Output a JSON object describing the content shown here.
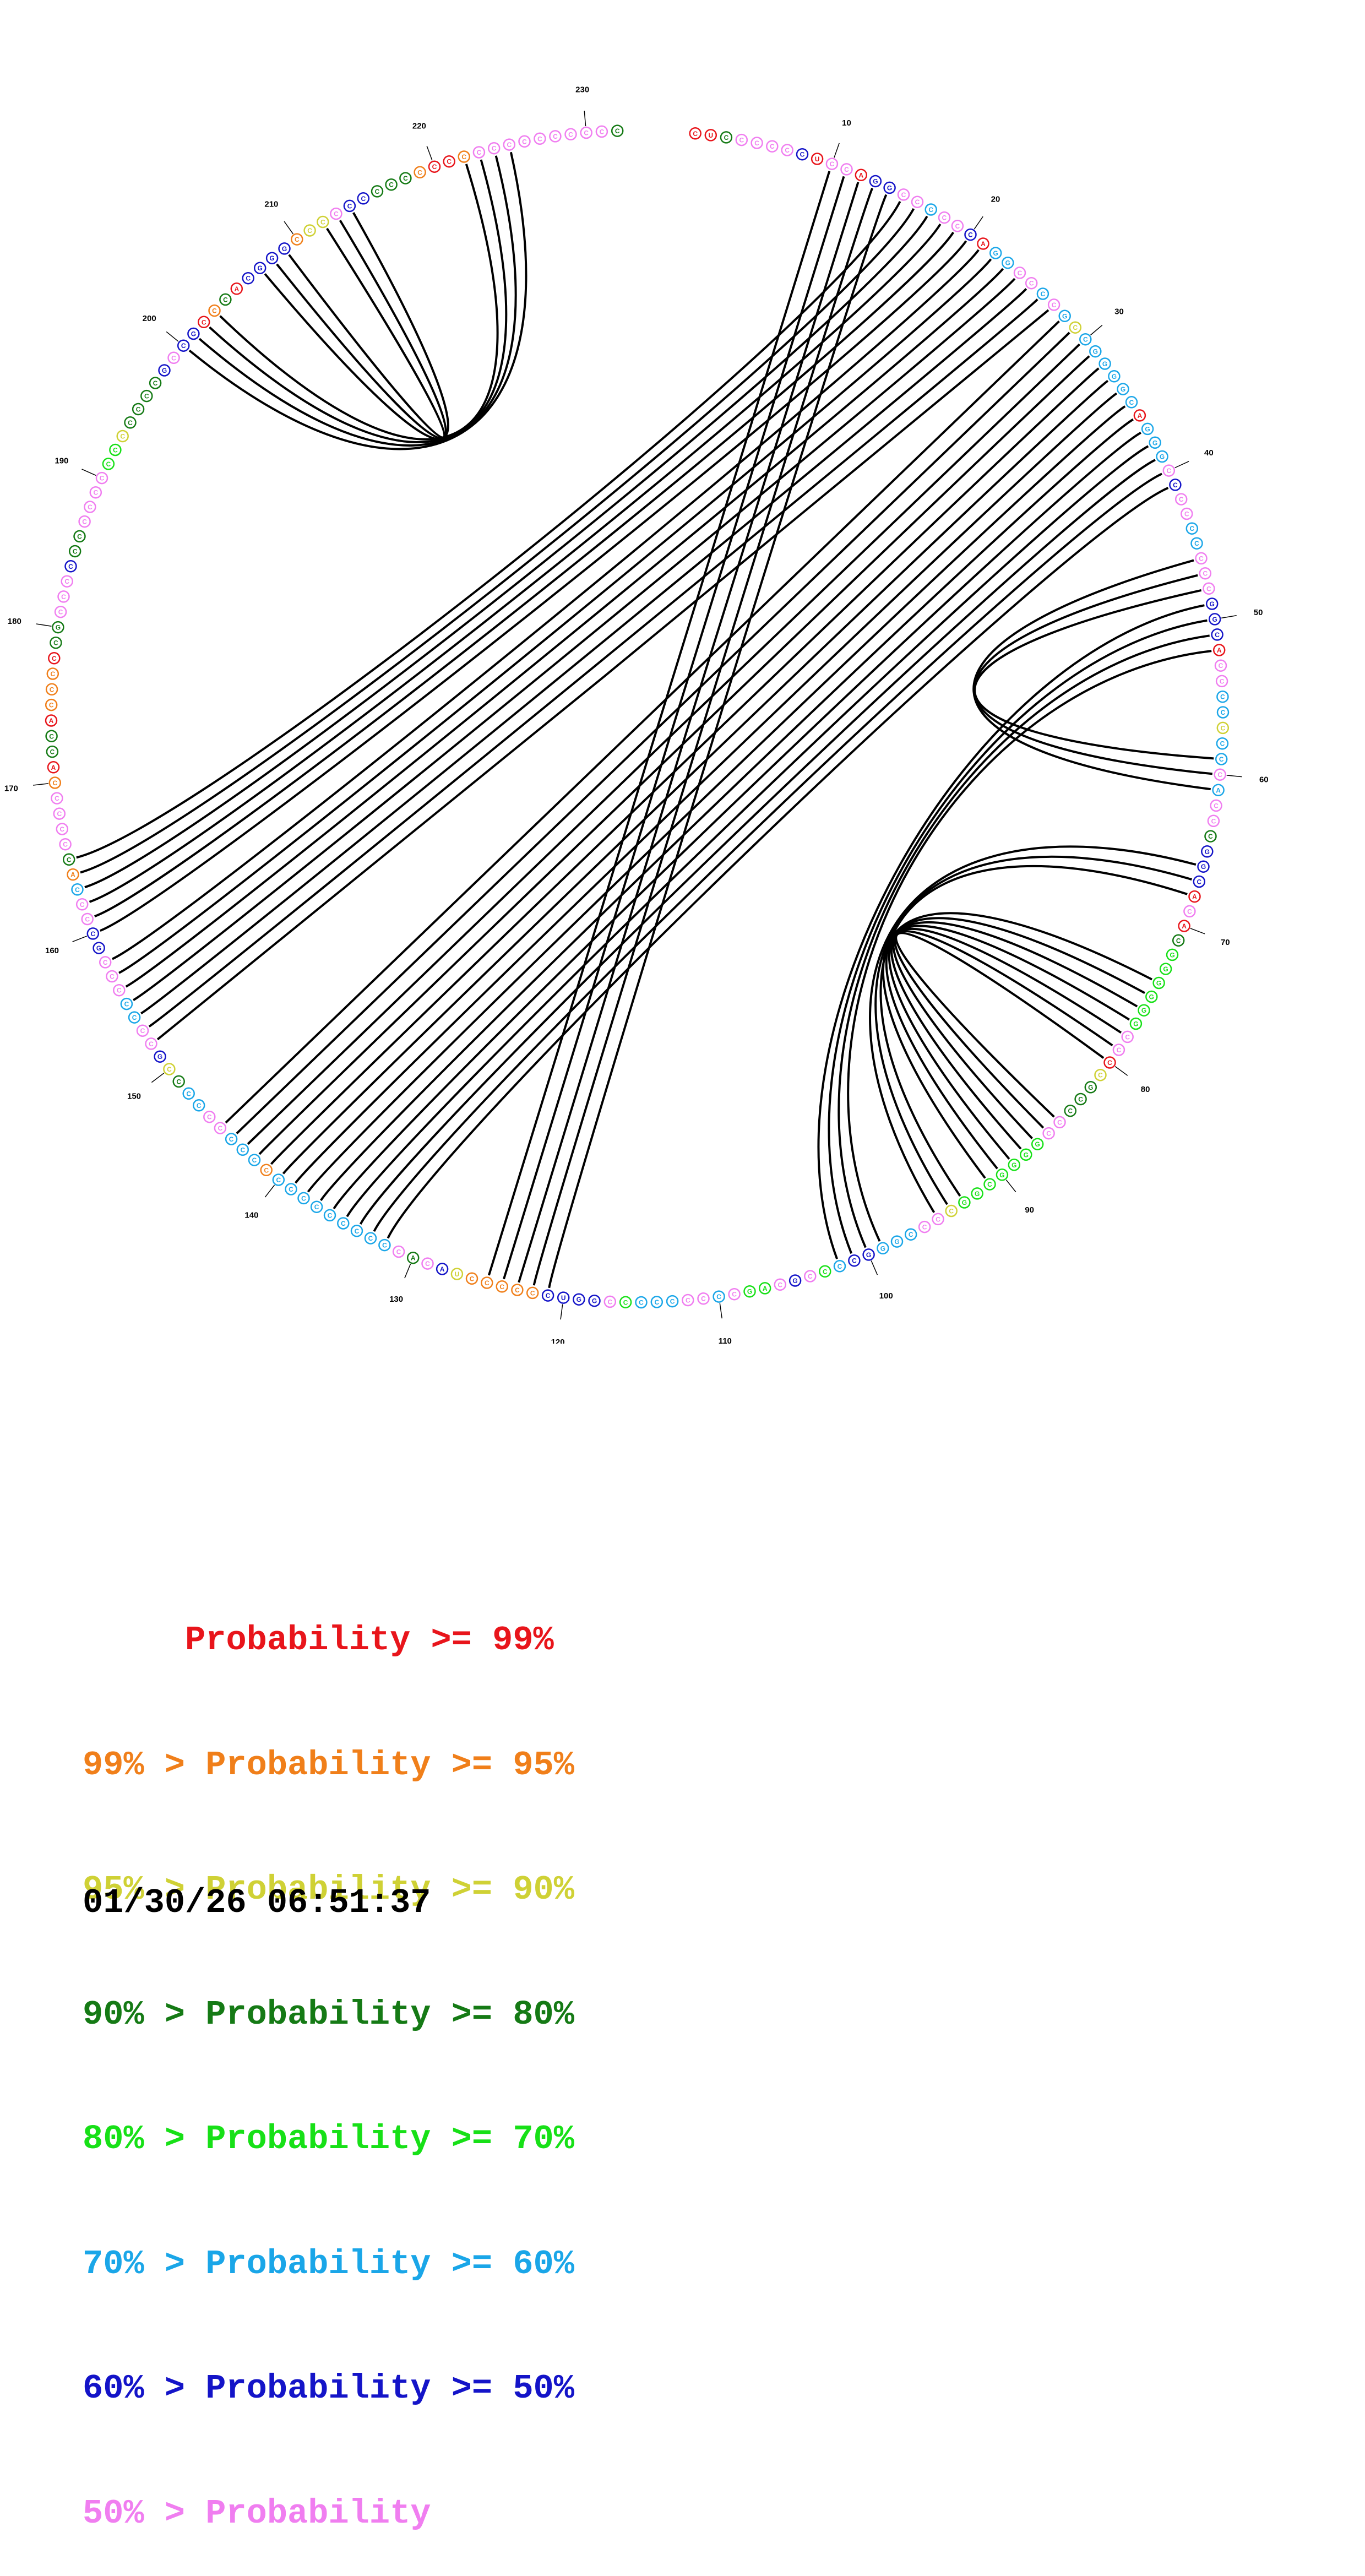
{
  "diagram": {
    "sequence_length": 232,
    "backbone_order": "clockwise",
    "tick_labels": [
      "10",
      "20",
      "30",
      "40",
      "50",
      "60",
      "70",
      "80",
      "90",
      "100",
      "110",
      "120",
      "130",
      "140",
      "150",
      "160",
      "170",
      "180",
      "190",
      "200",
      "210",
      "220",
      "230"
    ],
    "probability_colors": {
      "p99": "#e8151b",
      "p95": "#f07f1a",
      "p90": "#cfd135",
      "p80": "#157a15",
      "p70": "#17e017",
      "p60": "#1aa6e8",
      "p50": "#1414c8",
      "plt50": "#f07ef0"
    },
    "nucleotides": [
      {
        "base": "C",
        "color": "p99"
      },
      {
        "base": "U",
        "color": "p99"
      },
      {
        "base": "C",
        "color": "p80"
      },
      {
        "base": "C",
        "color": "plt50"
      },
      {
        "base": "C",
        "color": "plt50"
      },
      {
        "base": "C",
        "color": "plt50"
      },
      {
        "base": "C",
        "color": "plt50"
      },
      {
        "base": "C",
        "color": "p50"
      },
      {
        "base": "U",
        "color": "p99"
      },
      {
        "base": "C",
        "color": "plt50"
      },
      {
        "base": "C",
        "color": "plt50"
      },
      {
        "base": "A",
        "color": "p99"
      },
      {
        "base": "G",
        "color": "p50"
      },
      {
        "base": "G",
        "color": "p50"
      },
      {
        "base": "C",
        "color": "plt50"
      },
      {
        "base": "C",
        "color": "plt50"
      },
      {
        "base": "C",
        "color": "p60"
      },
      {
        "base": "C",
        "color": "plt50"
      },
      {
        "base": "C",
        "color": "plt50"
      },
      {
        "base": "C",
        "color": "p50"
      },
      {
        "base": "A",
        "color": "p99"
      },
      {
        "base": "G",
        "color": "p60"
      },
      {
        "base": "G",
        "color": "p60"
      },
      {
        "base": "C",
        "color": "plt50"
      },
      {
        "base": "C",
        "color": "plt50"
      },
      {
        "base": "C",
        "color": "p60"
      },
      {
        "base": "C",
        "color": "plt50"
      },
      {
        "base": "G",
        "color": "p60"
      },
      {
        "base": "C",
        "color": "p90"
      },
      {
        "base": "C",
        "color": "p60"
      },
      {
        "base": "G",
        "color": "p60"
      },
      {
        "base": "G",
        "color": "p60"
      },
      {
        "base": "G",
        "color": "p60"
      },
      {
        "base": "G",
        "color": "p60"
      },
      {
        "base": "C",
        "color": "p60"
      },
      {
        "base": "A",
        "color": "p99"
      },
      {
        "base": "G",
        "color": "p60"
      },
      {
        "base": "G",
        "color": "p60"
      },
      {
        "base": "G",
        "color": "p60"
      },
      {
        "base": "C",
        "color": "plt50"
      },
      {
        "base": "C",
        "color": "p50"
      },
      {
        "base": "C",
        "color": "plt50"
      },
      {
        "base": "C",
        "color": "plt50"
      },
      {
        "base": "C",
        "color": "p60"
      },
      {
        "base": "C",
        "color": "p60"
      },
      {
        "base": "C",
        "color": "plt50"
      },
      {
        "base": "C",
        "color": "plt50"
      },
      {
        "base": "C",
        "color": "plt50"
      },
      {
        "base": "G",
        "color": "p50"
      },
      {
        "base": "G",
        "color": "p50"
      },
      {
        "base": "C",
        "color": "p50"
      },
      {
        "base": "A",
        "color": "p99"
      },
      {
        "base": "C",
        "color": "plt50"
      },
      {
        "base": "C",
        "color": "plt50"
      },
      {
        "base": "C",
        "color": "p60"
      },
      {
        "base": "C",
        "color": "p60"
      },
      {
        "base": "C",
        "color": "p90"
      },
      {
        "base": "C",
        "color": "p60"
      },
      {
        "base": "C",
        "color": "p60"
      },
      {
        "base": "C",
        "color": "plt50"
      },
      {
        "base": "A",
        "color": "p60"
      },
      {
        "base": "C",
        "color": "plt50"
      },
      {
        "base": "C",
        "color": "plt50"
      },
      {
        "base": "C",
        "color": "p80"
      },
      {
        "base": "G",
        "color": "p50"
      },
      {
        "base": "G",
        "color": "p50"
      },
      {
        "base": "C",
        "color": "p50"
      },
      {
        "base": "A",
        "color": "p99"
      },
      {
        "base": "C",
        "color": "plt50"
      },
      {
        "base": "A",
        "color": "p99"
      },
      {
        "base": "C",
        "color": "p80"
      },
      {
        "base": "G",
        "color": "p70"
      },
      {
        "base": "G",
        "color": "p70"
      },
      {
        "base": "G",
        "color": "p70"
      },
      {
        "base": "G",
        "color": "p70"
      },
      {
        "base": "G",
        "color": "p70"
      },
      {
        "base": "G",
        "color": "p70"
      },
      {
        "base": "C",
        "color": "plt50"
      },
      {
        "base": "C",
        "color": "plt50"
      },
      {
        "base": "C",
        "color": "p99"
      },
      {
        "base": "C",
        "color": "p90"
      },
      {
        "base": "G",
        "color": "p80"
      },
      {
        "base": "C",
        "color": "p80"
      },
      {
        "base": "C",
        "color": "p80"
      },
      {
        "base": "C",
        "color": "plt50"
      },
      {
        "base": "C",
        "color": "plt50"
      },
      {
        "base": "G",
        "color": "p70"
      },
      {
        "base": "G",
        "color": "p70"
      },
      {
        "base": "G",
        "color": "p70"
      },
      {
        "base": "G",
        "color": "p70"
      },
      {
        "base": "C",
        "color": "p70"
      },
      {
        "base": "G",
        "color": "p70"
      },
      {
        "base": "G",
        "color": "p70"
      },
      {
        "base": "C",
        "color": "p90"
      },
      {
        "base": "C",
        "color": "plt50"
      },
      {
        "base": "C",
        "color": "plt50"
      },
      {
        "base": "C",
        "color": "p60"
      },
      {
        "base": "G",
        "color": "p60"
      },
      {
        "base": "G",
        "color": "p60"
      },
      {
        "base": "G",
        "color": "p50"
      },
      {
        "base": "C",
        "color": "p50"
      },
      {
        "base": "C",
        "color": "p60"
      },
      {
        "base": "C",
        "color": "p70"
      },
      {
        "base": "C",
        "color": "plt50"
      },
      {
        "base": "G",
        "color": "p50"
      },
      {
        "base": "C",
        "color": "plt50"
      },
      {
        "base": "A",
        "color": "p70"
      },
      {
        "base": "G",
        "color": "p70"
      },
      {
        "base": "C",
        "color": "plt50"
      },
      {
        "base": "C",
        "color": "p60"
      },
      {
        "base": "C",
        "color": "plt50"
      },
      {
        "base": "C",
        "color": "plt50"
      },
      {
        "base": "C",
        "color": "p60"
      },
      {
        "base": "C",
        "color": "p60"
      },
      {
        "base": "C",
        "color": "p60"
      },
      {
        "base": "C",
        "color": "p70"
      },
      {
        "base": "C",
        "color": "plt50"
      },
      {
        "base": "G",
        "color": "p50"
      },
      {
        "base": "G",
        "color": "p50"
      },
      {
        "base": "U",
        "color": "p50"
      },
      {
        "base": "C",
        "color": "p50"
      },
      {
        "base": "C",
        "color": "p95"
      },
      {
        "base": "C",
        "color": "p95"
      },
      {
        "base": "C",
        "color": "p95"
      },
      {
        "base": "C",
        "color": "p95"
      },
      {
        "base": "C",
        "color": "p95"
      },
      {
        "base": "U",
        "color": "p90"
      },
      {
        "base": "A",
        "color": "p50"
      },
      {
        "base": "C",
        "color": "plt50"
      },
      {
        "base": "A",
        "color": "p80"
      },
      {
        "base": "C",
        "color": "plt50"
      },
      {
        "base": "C",
        "color": "p60"
      },
      {
        "base": "C",
        "color": "p60"
      },
      {
        "base": "C",
        "color": "p60"
      },
      {
        "base": "C",
        "color": "p60"
      },
      {
        "base": "C",
        "color": "p60"
      },
      {
        "base": "C",
        "color": "p60"
      },
      {
        "base": "C",
        "color": "p60"
      },
      {
        "base": "C",
        "color": "p60"
      },
      {
        "base": "C",
        "color": "p60"
      },
      {
        "base": "C",
        "color": "p95"
      },
      {
        "base": "C",
        "color": "p60"
      },
      {
        "base": "C",
        "color": "p60"
      },
      {
        "base": "C",
        "color": "p60"
      },
      {
        "base": "C",
        "color": "plt50"
      },
      {
        "base": "C",
        "color": "plt50"
      },
      {
        "base": "C",
        "color": "p60"
      },
      {
        "base": "C",
        "color": "p60"
      },
      {
        "base": "C",
        "color": "p80"
      },
      {
        "base": "C",
        "color": "p90"
      },
      {
        "base": "G",
        "color": "p50"
      },
      {
        "base": "C",
        "color": "plt50"
      },
      {
        "base": "C",
        "color": "plt50"
      },
      {
        "base": "C",
        "color": "p60"
      },
      {
        "base": "C",
        "color": "p60"
      },
      {
        "base": "C",
        "color": "plt50"
      },
      {
        "base": "C",
        "color": "plt50"
      },
      {
        "base": "C",
        "color": "plt50"
      },
      {
        "base": "G",
        "color": "p50"
      },
      {
        "base": "C",
        "color": "p50"
      },
      {
        "base": "C",
        "color": "plt50"
      },
      {
        "base": "C",
        "color": "plt50"
      },
      {
        "base": "C",
        "color": "p60"
      },
      {
        "base": "A",
        "color": "p95"
      },
      {
        "base": "C",
        "color": "p80"
      },
      {
        "base": "C",
        "color": "plt50"
      },
      {
        "base": "C",
        "color": "plt50"
      },
      {
        "base": "C",
        "color": "plt50"
      },
      {
        "base": "C",
        "color": "plt50"
      },
      {
        "base": "C",
        "color": "p95"
      },
      {
        "base": "A",
        "color": "p99"
      },
      {
        "base": "C",
        "color": "p80"
      },
      {
        "base": "C",
        "color": "p80"
      },
      {
        "base": "A",
        "color": "p99"
      },
      {
        "base": "C",
        "color": "p95"
      },
      {
        "base": "C",
        "color": "p95"
      },
      {
        "base": "C",
        "color": "p95"
      },
      {
        "base": "C",
        "color": "p99"
      },
      {
        "base": "C",
        "color": "p80"
      },
      {
        "base": "G",
        "color": "p80"
      },
      {
        "base": "C",
        "color": "plt50"
      },
      {
        "base": "C",
        "color": "plt50"
      },
      {
        "base": "C",
        "color": "plt50"
      },
      {
        "base": "C",
        "color": "p50"
      },
      {
        "base": "C",
        "color": "p80"
      },
      {
        "base": "C",
        "color": "p80"
      },
      {
        "base": "C",
        "color": "plt50"
      },
      {
        "base": "C",
        "color": "plt50"
      },
      {
        "base": "C",
        "color": "plt50"
      },
      {
        "base": "C",
        "color": "plt50"
      },
      {
        "base": "C",
        "color": "p70"
      },
      {
        "base": "C",
        "color": "p70"
      },
      {
        "base": "C",
        "color": "p90"
      },
      {
        "base": "C",
        "color": "p80"
      },
      {
        "base": "C",
        "color": "p80"
      },
      {
        "base": "C",
        "color": "p80"
      },
      {
        "base": "C",
        "color": "p80"
      },
      {
        "base": "G",
        "color": "p50"
      },
      {
        "base": "C",
        "color": "plt50"
      },
      {
        "base": "C",
        "color": "p50"
      },
      {
        "base": "G",
        "color": "p50"
      },
      {
        "base": "C",
        "color": "p99"
      },
      {
        "base": "C",
        "color": "p95"
      },
      {
        "base": "C",
        "color": "p80"
      },
      {
        "base": "A",
        "color": "p99"
      },
      {
        "base": "C",
        "color": "p50"
      },
      {
        "base": "G",
        "color": "p50"
      },
      {
        "base": "G",
        "color": "p50"
      },
      {
        "base": "G",
        "color": "p50"
      },
      {
        "base": "C",
        "color": "p95"
      },
      {
        "base": "C",
        "color": "p90"
      },
      {
        "base": "C",
        "color": "p90"
      },
      {
        "base": "C",
        "color": "plt50"
      },
      {
        "base": "C",
        "color": "p50"
      },
      {
        "base": "C",
        "color": "p50"
      },
      {
        "base": "C",
        "color": "p80"
      },
      {
        "base": "C",
        "color": "p80"
      },
      {
        "base": "C",
        "color": "p80"
      },
      {
        "base": "C",
        "color": "p95"
      },
      {
        "base": "C",
        "color": "p99"
      },
      {
        "base": "C",
        "color": "p99"
      },
      {
        "base": "C",
        "color": "p95"
      },
      {
        "base": "C",
        "color": "plt50"
      },
      {
        "base": "C",
        "color": "plt50"
      },
      {
        "base": "C",
        "color": "plt50"
      },
      {
        "base": "C",
        "color": "plt50"
      },
      {
        "base": "C",
        "color": "plt50"
      },
      {
        "base": "C",
        "color": "plt50"
      },
      {
        "base": "C",
        "color": "plt50"
      },
      {
        "base": "C",
        "color": "plt50"
      },
      {
        "base": "C",
        "color": "plt50"
      },
      {
        "base": "C",
        "color": "p80"
      }
    ],
    "pairs": [
      [
        10,
        125
      ],
      [
        11,
        124
      ],
      [
        12,
        123
      ],
      [
        13,
        122
      ],
      [
        14,
        121
      ],
      [
        15,
        165
      ],
      [
        16,
        164
      ],
      [
        17,
        163
      ],
      [
        18,
        162
      ],
      [
        19,
        161
      ],
      [
        20,
        160
      ],
      [
        21,
        158
      ],
      [
        22,
        157
      ],
      [
        23,
        156
      ],
      [
        24,
        155
      ],
      [
        25,
        154
      ],
      [
        26,
        153
      ],
      [
        27,
        152
      ],
      [
        28,
        145
      ],
      [
        29,
        144
      ],
      [
        30,
        143
      ],
      [
        31,
        142
      ],
      [
        32,
        141
      ],
      [
        33,
        140
      ],
      [
        34,
        139
      ],
      [
        35,
        138
      ],
      [
        36,
        137
      ],
      [
        37,
        136
      ],
      [
        38,
        135
      ],
      [
        39,
        134
      ],
      [
        40,
        133
      ],
      [
        41,
        132
      ],
      [
        46,
        61
      ],
      [
        47,
        60
      ],
      [
        48,
        59
      ],
      [
        49,
        102
      ],
      [
        50,
        101
      ],
      [
        51,
        100
      ],
      [
        52,
        99
      ],
      [
        66,
        95
      ],
      [
        67,
        94
      ],
      [
        68,
        93
      ],
      [
        74,
        91
      ],
      [
        75,
        90
      ],
      [
        76,
        89
      ],
      [
        77,
        88
      ],
      [
        78,
        87
      ],
      [
        79,
        86
      ],
      [
        80,
        85
      ],
      [
        200,
        225
      ],
      [
        201,
        224
      ],
      [
        202,
        223
      ],
      [
        203,
        222
      ],
      [
        207,
        214
      ],
      [
        208,
        213
      ],
      [
        209,
        212
      ]
    ]
  },
  "legend": [
    {
      "text": "     Probability >= 99%",
      "color": "#e8151b"
    },
    {
      "text": "99% > Probability >= 95%",
      "color": "#f07f1a"
    },
    {
      "text": "95% > Probability >= 90%",
      "color": "#cfd135"
    },
    {
      "text": "90% > Probability >= 80%",
      "color": "#157a15"
    },
    {
      "text": "80% > Probability >= 70%",
      "color": "#17e017"
    },
    {
      "text": "70% > Probability >= 60%",
      "color": "#1aa6e8"
    },
    {
      "text": "60% > Probability >= 50%",
      "color": "#1414c8"
    },
    {
      "text": "50% > Probability",
      "color": "#f07ef0"
    }
  ],
  "timestamp": "01/30/26 06:51:37"
}
